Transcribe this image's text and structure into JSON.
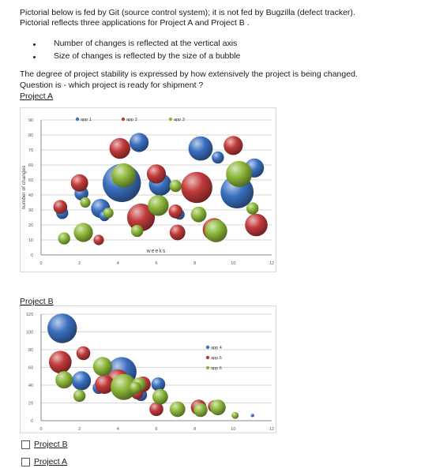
{
  "intro": {
    "line1": "Pictorial below is fed by Git (source control system); it is not fed by Bugzilla (defect tracker).",
    "line2": "Pictorial reflects three applications for Project A and Project B .",
    "bullets": [
      "Number of changes is reflected at the vertical axis",
      "Size of changes is reflected by the size of a bubble"
    ],
    "stability": "The degree of project stability is expressed by how extensively the project is being changed.",
    "question": "Question is - which project is ready for shipment ?"
  },
  "project_a_label": "Project A",
  "project_b_label": "Project B",
  "answer_options": [
    {
      "label": "Project B",
      "checked": false
    },
    {
      "label": "Project A",
      "checked": false
    }
  ],
  "colors": {
    "blue": "#3a70c0",
    "red": "#c23a3a",
    "green": "#8db83a"
  },
  "chart_data": [
    {
      "type": "scatter",
      "title": "",
      "xlabel": "weeks",
      "ylabel": "number of changes",
      "xlim": [
        0,
        12
      ],
      "ylim": [
        0,
        90
      ],
      "xticks": [
        0,
        2,
        4,
        6,
        8,
        10,
        12
      ],
      "yticks": [
        0,
        10,
        20,
        30,
        40,
        50,
        60,
        70,
        80,
        90
      ],
      "grid": true,
      "legend_position": "top",
      "series": [
        {
          "name": "app 1",
          "color": "#3a70c0",
          "points": [
            [
              1.1,
              28,
              0.7
            ],
            [
              2.1,
              41,
              0.8
            ],
            [
              3.1,
              31,
              1.1
            ],
            [
              4.2,
              48,
              2.2
            ],
            [
              5.1,
              75,
              1.1
            ],
            [
              6.2,
              47,
              1.3
            ],
            [
              8.3,
              71,
              1.4
            ],
            [
              9.2,
              65,
              0.7
            ],
            [
              10.2,
              42,
              1.9
            ],
            [
              11.1,
              58,
              1.1
            ],
            [
              7.2,
              27,
              0.6
            ],
            [
              3.3,
              26,
              0.6
            ]
          ]
        },
        {
          "name": "app 2",
          "color": "#c23a3a",
          "points": [
            [
              1.0,
              32,
              0.8
            ],
            [
              2.0,
              48,
              1.0
            ],
            [
              4.1,
              71,
              1.2
            ],
            [
              5.2,
              25,
              1.6
            ],
            [
              6.0,
              54,
              1.1
            ],
            [
              8.1,
              45,
              1.8
            ],
            [
              9.0,
              17,
              1.3
            ],
            [
              10.0,
              73,
              1.1
            ],
            [
              11.2,
              20,
              1.3
            ],
            [
              3.0,
              10,
              0.6
            ],
            [
              7.0,
              29,
              0.8
            ],
            [
              7.1,
              15,
              0.9
            ]
          ]
        },
        {
          "name": "app 3",
          "color": "#8db83a",
          "points": [
            [
              1.2,
              11,
              0.7
            ],
            [
              2.2,
              15,
              1.1
            ],
            [
              4.3,
              53,
              1.4
            ],
            [
              5.0,
              16,
              0.7
            ],
            [
              6.1,
              33,
              1.2
            ],
            [
              8.2,
              27,
              0.9
            ],
            [
              9.1,
              16,
              1.3
            ],
            [
              10.3,
              54,
              1.5
            ],
            [
              11.0,
              31,
              0.7
            ],
            [
              2.3,
              35,
              0.6
            ],
            [
              7.0,
              46,
              0.7
            ],
            [
              3.5,
              28,
              0.6
            ]
          ]
        }
      ]
    },
    {
      "type": "scatter",
      "title": "",
      "xlabel": "",
      "ylabel": "",
      "xlim": [
        0,
        12
      ],
      "ylim": [
        0,
        120
      ],
      "xticks": [
        0,
        2,
        4,
        6,
        8,
        10,
        12
      ],
      "yticks": [
        0,
        20,
        40,
        60,
        80,
        100,
        120
      ],
      "grid": true,
      "legend_position": "right",
      "series": [
        {
          "name": "app 4",
          "color": "#3a70c0",
          "points": [
            [
              1.1,
              104,
              1.7
            ],
            [
              2.1,
              45,
              1.1
            ],
            [
              4.2,
              55,
              1.7
            ],
            [
              6.1,
              41,
              0.8
            ],
            [
              8.1,
              13,
              0.6
            ],
            [
              9.2,
              12,
              0.6
            ],
            [
              11.0,
              6,
              0.2
            ],
            [
              3.0,
              37,
              0.7
            ],
            [
              5.2,
              29,
              0.7
            ]
          ]
        },
        {
          "name": "app 5",
          "color": "#c23a3a",
          "points": [
            [
              1.0,
              66,
              1.3
            ],
            [
              2.2,
              76,
              0.8
            ],
            [
              4.0,
              45,
              1.3
            ],
            [
              5.3,
              41,
              0.9
            ],
            [
              6.0,
              13,
              0.8
            ],
            [
              8.2,
              15,
              0.9
            ],
            [
              9.0,
              16,
              0.7
            ],
            [
              3.3,
              41,
              1.1
            ],
            [
              5.0,
              31,
              0.7
            ],
            [
              10.0,
              6,
              0.2
            ]
          ]
        },
        {
          "name": "app 6",
          "color": "#8db83a",
          "points": [
            [
              1.2,
              46,
              1.0
            ],
            [
              2.0,
              28,
              0.7
            ],
            [
              3.2,
              61,
              1.1
            ],
            [
              4.3,
              38,
              1.5
            ],
            [
              5.1,
              41,
              0.8
            ],
            [
              6.2,
              27,
              0.9
            ],
            [
              7.1,
              13,
              0.9
            ],
            [
              8.3,
              12,
              0.8
            ],
            [
              9.2,
              15,
              0.9
            ],
            [
              10.1,
              6,
              0.4
            ],
            [
              4.9,
              37,
              0.7
            ]
          ]
        }
      ]
    }
  ]
}
